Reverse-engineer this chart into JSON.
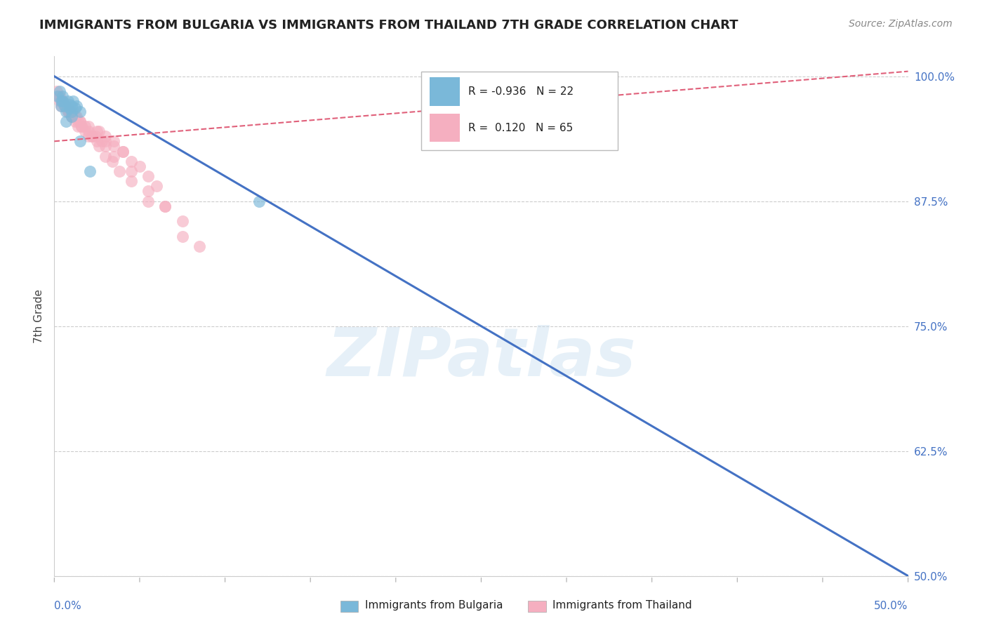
{
  "title": "IMMIGRANTS FROM BULGARIA VS IMMIGRANTS FROM THAILAND 7TH GRADE CORRELATION CHART",
  "source": "Source: ZipAtlas.com",
  "ylabel": "7th Grade",
  "yticks": [
    50.0,
    62.5,
    75.0,
    87.5,
    100.0
  ],
  "ytick_labels": [
    "50.0%",
    "62.5%",
    "75.0%",
    "87.5%",
    "100.0%"
  ],
  "xmin": 0.0,
  "xmax": 50.0,
  "ymin": 50.0,
  "ymax": 102.0,
  "bulgaria_color": "#7ab8d9",
  "thailand_color": "#f5afc0",
  "bulgaria_line_color": "#4472c4",
  "thailand_line_color": "#e0607a",
  "bulgaria_R": -0.936,
  "bulgaria_N": 22,
  "thailand_R": 0.12,
  "thailand_N": 65,
  "watermark": "ZIPatlas",
  "background_color": "#ffffff",
  "title_fontsize": 13,
  "bulgaria_line_x": [
    0.0,
    50.0
  ],
  "bulgaria_line_y": [
    100.0,
    50.0
  ],
  "thailand_line_x": [
    0.0,
    50.0
  ],
  "thailand_line_y": [
    93.5,
    100.5
  ],
  "bulgaria_scatter_x": [
    0.3,
    0.5,
    0.8,
    0.9,
    1.0,
    1.1,
    1.2,
    1.3,
    1.5,
    0.2,
    0.4,
    0.6,
    0.7,
    0.9,
    1.0,
    0.4,
    0.7,
    2.1,
    1.5,
    0.5,
    12.0,
    1.0
  ],
  "bulgaria_scatter_y": [
    98.5,
    98.0,
    97.5,
    97.2,
    97.0,
    97.5,
    96.8,
    97.0,
    96.5,
    98.0,
    97.5,
    97.0,
    96.5,
    96.8,
    96.0,
    97.0,
    95.5,
    90.5,
    93.5,
    97.5,
    87.5,
    96.5
  ],
  "thailand_scatter_x": [
    0.15,
    0.3,
    0.4,
    0.5,
    0.6,
    0.7,
    0.8,
    0.9,
    1.0,
    1.1,
    1.2,
    1.3,
    1.4,
    1.5,
    1.6,
    1.8,
    2.0,
    2.2,
    2.4,
    2.6,
    2.8,
    3.0,
    3.5,
    4.0,
    0.25,
    0.5,
    0.75,
    1.0,
    1.5,
    2.0,
    2.5,
    3.0,
    3.5,
    4.0,
    4.5,
    5.0,
    5.5,
    6.0,
    6.5,
    7.5,
    0.4,
    0.8,
    1.2,
    1.6,
    2.0,
    2.5,
    3.0,
    3.5,
    4.5,
    5.5,
    6.5,
    7.5,
    8.5,
    0.3,
    0.6,
    1.0,
    1.4,
    1.8,
    2.2,
    2.6,
    3.0,
    3.4,
    3.8,
    4.5,
    5.5
  ],
  "thailand_scatter_y": [
    98.5,
    98.0,
    97.5,
    97.5,
    97.0,
    97.0,
    96.5,
    96.5,
    96.0,
    96.5,
    96.0,
    96.0,
    95.5,
    95.5,
    95.0,
    95.0,
    94.5,
    94.0,
    94.0,
    94.5,
    93.5,
    93.5,
    93.0,
    92.5,
    98.0,
    97.5,
    97.0,
    96.5,
    95.5,
    95.0,
    94.5,
    94.0,
    93.5,
    92.5,
    91.5,
    91.0,
    90.0,
    89.0,
    87.0,
    84.0,
    97.0,
    96.5,
    95.5,
    95.0,
    94.0,
    93.5,
    93.0,
    92.0,
    90.5,
    88.5,
    87.0,
    85.5,
    83.0,
    97.5,
    97.0,
    96.0,
    95.0,
    94.5,
    94.0,
    93.0,
    92.0,
    91.5,
    90.5,
    89.5,
    87.5
  ]
}
